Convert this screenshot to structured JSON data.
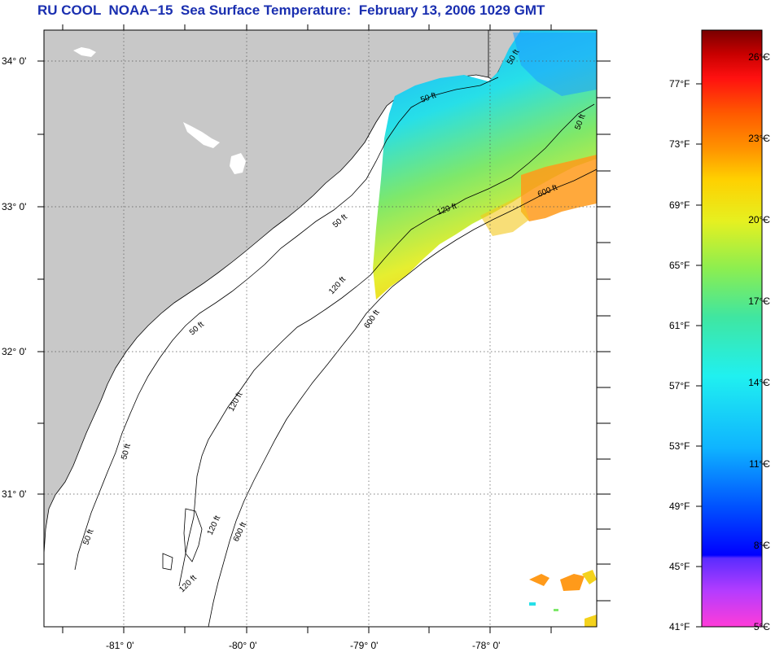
{
  "title": "RU COOL  NOAA−15  Sea Surface Temperature:  February 13, 2006 1029 GMT",
  "map": {
    "longitude_labels": [
      "-81° 0'",
      "-80° 0'",
      "-79° 0'",
      "-78° 0'"
    ],
    "latitude_labels": [
      "34° 0'",
      "33° 0'",
      "32° 0'",
      "31° 0'"
    ],
    "contour_labels": [
      "50 ft",
      "50 ft",
      "120 ft",
      "600 ft",
      "50 ft",
      "120 ft",
      "600 ft",
      "50 ft",
      "120 ft",
      "600 ft",
      "50 ft",
      "120 ft",
      "50 ft",
      "120 ft",
      "50 ft"
    ],
    "colors": {
      "land": "#c8c8c8",
      "ocean": "#ffffff",
      "title": "#1a2fb0"
    }
  },
  "colorbar": {
    "fahrenheit_labels": [
      "77°F",
      "73°F",
      "69°F",
      "65°F",
      "61°F",
      "57°F",
      "53°F",
      "49°F",
      "45°F",
      "41°F"
    ],
    "celsius_labels": [
      "26°C",
      "23°C",
      "20°C",
      "17°C",
      "14°C",
      "11°C",
      "8°C",
      "5°C"
    ]
  }
}
